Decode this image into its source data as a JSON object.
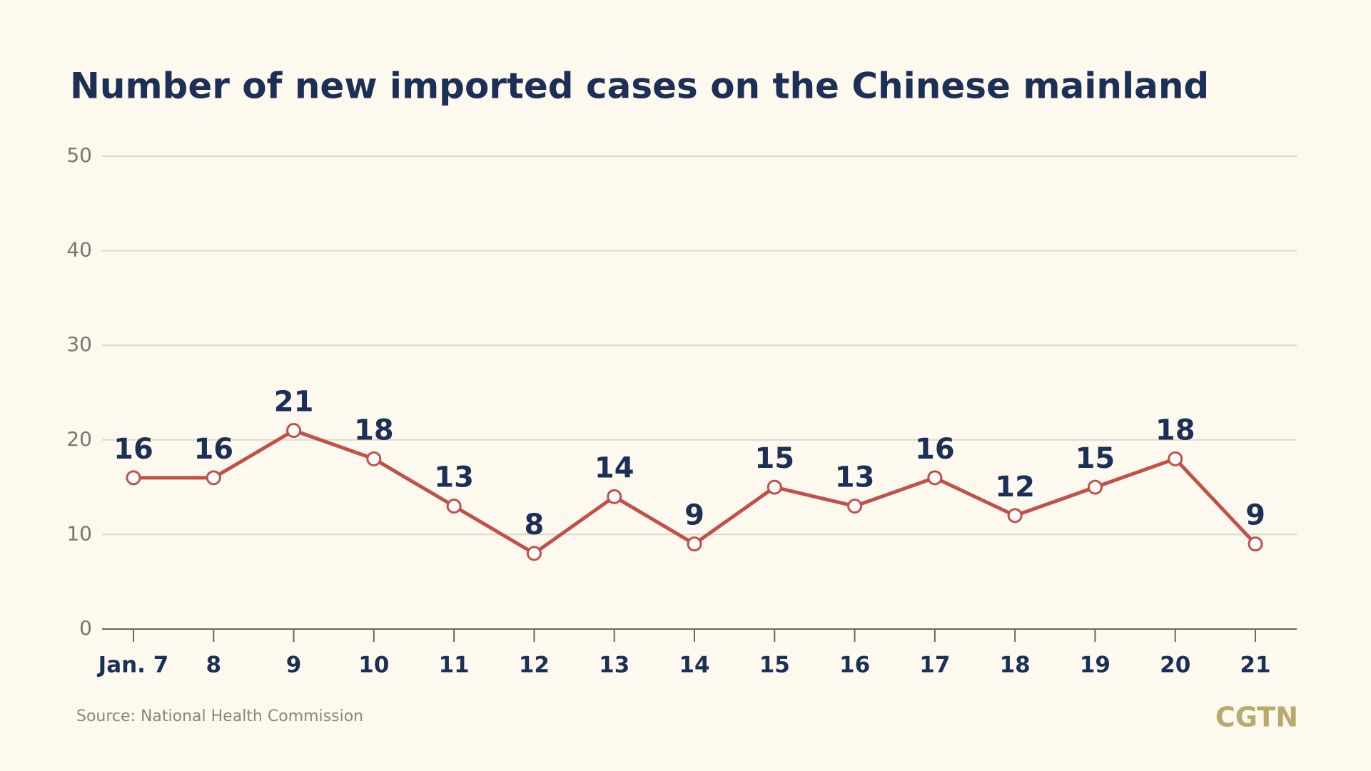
{
  "chart_data": {
    "type": "line",
    "title": "Number of new imported cases on the Chinese mainland",
    "categories": [
      "Jan. 7",
      "8",
      "9",
      "10",
      "11",
      "12",
      "13",
      "14",
      "15",
      "16",
      "17",
      "18",
      "19",
      "20",
      "21"
    ],
    "values": [
      16,
      16,
      21,
      18,
      13,
      8,
      14,
      9,
      15,
      13,
      16,
      12,
      15,
      18,
      9
    ],
    "color": "#c1504a",
    "ylim": [
      0,
      50
    ],
    "yticks": [
      0,
      10,
      20,
      30,
      40,
      50
    ],
    "grid": true,
    "source": "Source: National Health Commission",
    "brand": "CGTN"
  }
}
